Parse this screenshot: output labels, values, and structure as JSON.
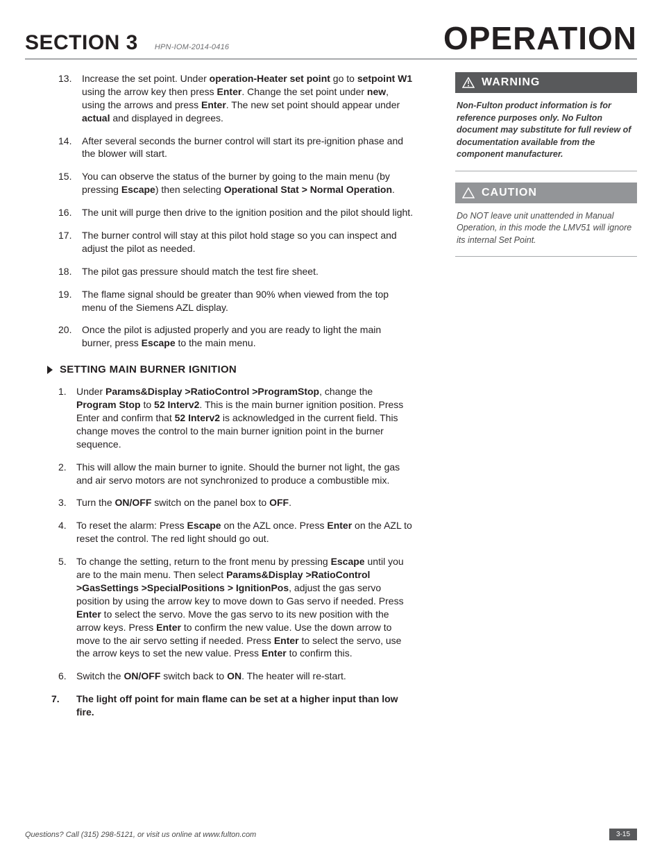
{
  "header": {
    "section": "SECTION 3",
    "doc_code": "HPN-IOM-2014-0416",
    "page_title": "OPERATION"
  },
  "list1": {
    "start": 13,
    "items": [
      "Increase the set point. Under <b>operation-Heater set point</b> go to <b>setpoint W1</b> using the arrow key then press <b>Enter</b>. Change the set point under <b>new</b>, using the arrows and press <b>Enter</b>. The new set point should appear under <b>actual</b> and displayed in degrees.",
      "After several seconds the burner control will start its pre-ignition phase and the blower will start.",
      "You can observe the status of the burner by going to the main menu (by pressing <b>Escape</b>) then selecting <b>Operational Stat > Normal Operation</b>.",
      "The unit will purge then drive to the ignition position and the pilot should light.",
      "The burner control will stay at this pilot hold stage so you can inspect and adjust the pilot as needed.",
      "The pilot gas pressure should match the test fire sheet.",
      "The flame signal should be greater than 90% when viewed from the top menu of the Siemens AZL display.",
      "Once the pilot is adjusted properly and you are ready to light the main burner, press <b>Escape</b> to the main menu."
    ]
  },
  "subheading": "SETTING MAIN BURNER IGNITION",
  "list2": {
    "start": 1,
    "items": [
      {
        "html": "Under <b>Params&Display >RatioControl >ProgramStop</b>, change the <b>Program Stop</b> to <b>52 Interv2</b>. This is the main burner ignition position. Press Enter and confirm that <b>52 Interv2</b> is acknowledged in the current field. This change moves the control to the main burner ignition point in the burner sequence.",
        "bold": false
      },
      {
        "html": "This will allow the main burner to ignite. Should the burner not light, the gas and air servo motors are not synchronized to produce a combustible mix.",
        "bold": false
      },
      {
        "html": "Turn the <b>ON/OFF</b> switch on the panel box to <b>OFF</b>.",
        "bold": false
      },
      {
        "html": "To reset the alarm: Press <b>Escape</b> on the AZL once.  Press <b>Enter</b> on the AZL to reset the control. The red light should go out.",
        "bold": false
      },
      {
        "html": "To change the setting, return to the front menu by pressing <b>Escape</b> until you are to the main menu. Then select <b>Params&Display >RatioControl >GasSettings >SpecialPositions > IgnitionPos</b>, adjust the gas servo position by using the arrow key to move down to Gas servo if needed. Press <b>Enter</b> to select the servo. Move the gas servo to its new position with the arrow keys. Press <b>Enter</b> to confirm the new value. Use the down arrow to move to the air servo setting if needed. Press <b>Enter</b> to select the servo, use the arrow keys to set the new value. Press <b>Enter</b> to confirm this.",
        "bold": false
      },
      {
        "html": "Switch the <b>ON/OFF</b> switch back to <b>ON</b>. The heater will re-start.",
        "bold": false
      },
      {
        "html": "The light off point for main flame can be set at a higher input than low fire.",
        "bold": true
      }
    ]
  },
  "warning": {
    "label": "WARNING",
    "body": "Non-Fulton product information is for reference purposes only.  No Fulton document may substitute for full review of documentation available from the component manufacturer."
  },
  "caution": {
    "label": "CAUTION",
    "body": "Do NOT leave unit unattended in Manual Operation, in this mode the LMV51 will ignore its internal Set Point."
  },
  "footer": {
    "left": "Questions?  Call (315) 298-5121, or visit us online at  www.fulton.com",
    "right": "3-15"
  }
}
